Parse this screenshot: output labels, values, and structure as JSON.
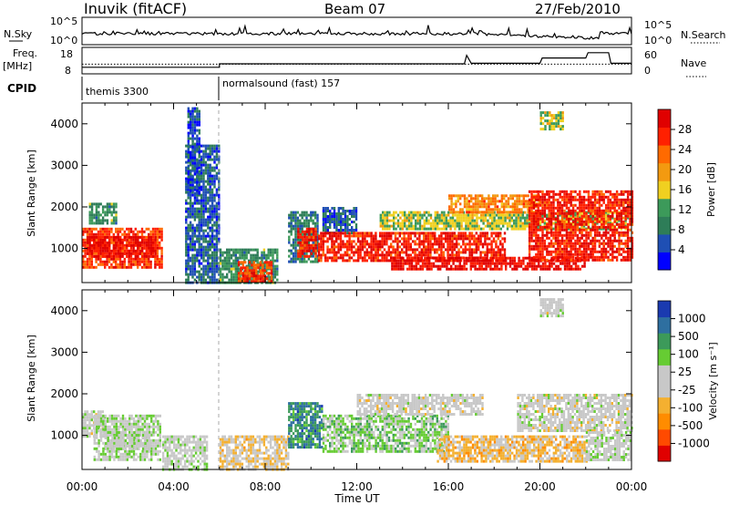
{
  "header": {
    "station": "Inuvik (fitACF)",
    "beam": "Beam 07",
    "date": "27/Feb/2010"
  },
  "nsky_panel": {
    "left_label": "N.Sky",
    "right_label": "N.Search",
    "left_ticks": [
      "10^5",
      "10^0"
    ],
    "right_ticks": [
      "10^5",
      "10^0"
    ]
  },
  "freq_panel": {
    "left_label_line1": "Freq.",
    "left_label_line2": "[MHz]",
    "left_ticks": [
      "18",
      "8"
    ],
    "right_ticks": [
      "60",
      "0"
    ],
    "right_label": "Nave"
  },
  "cpid_panel": {
    "label": "CPID",
    "segments": [
      {
        "label": "themis 3300",
        "start_hour": 0,
        "end_hour": 6
      },
      {
        "label": "normalsound (fast) 157",
        "start_hour": 6,
        "end_hour": 24
      }
    ]
  },
  "time_axis": {
    "title": "Time UT",
    "ticks": [
      "00:00",
      "04:00",
      "08:00",
      "12:00",
      "16:00",
      "20:00",
      "00:00"
    ],
    "range_hours": [
      0,
      24
    ]
  },
  "chart_data": [
    {
      "type": "heatmap",
      "title": "",
      "ylabel": "Slant Range [km]",
      "xlabel": "",
      "yticks": [
        "4000",
        "3000",
        "2000",
        "1000"
      ],
      "ylim": [
        180,
        4500
      ],
      "colorbar": {
        "label": "Power [dB]",
        "ticks": [
          "28",
          "24",
          "20",
          "16",
          "12",
          "8",
          "4"
        ],
        "range": [
          0,
          30
        ],
        "colors": [
          "#0000ff",
          "#1f4fb4",
          "#2e7d58",
          "#3c9a5a",
          "#f0d020",
          "#f39a10",
          "#ff6a00",
          "#ff2000",
          "#e00000"
        ]
      },
      "regions": [
        {
          "t0": 0.0,
          "t1": 3.5,
          "r0": 550,
          "r1": 1500,
          "value": 24
        },
        {
          "t0": 0.2,
          "t1": 3.2,
          "r0": 800,
          "r1": 1300,
          "value": 28
        },
        {
          "t0": 0.3,
          "t1": 1.5,
          "r0": 1600,
          "r1": 2100,
          "value": 10
        },
        {
          "t0": 4.5,
          "t1": 6.0,
          "r0": 200,
          "r1": 3500,
          "value": 6
        },
        {
          "t0": 4.6,
          "t1": 5.1,
          "r0": 2300,
          "r1": 4400,
          "value": 5
        },
        {
          "t0": 6.0,
          "t1": 8.5,
          "r0": 200,
          "r1": 1000,
          "value": 10
        },
        {
          "t0": 6.8,
          "t1": 8.3,
          "r0": 230,
          "r1": 700,
          "value": 24
        },
        {
          "t0": 9.0,
          "t1": 10.3,
          "r0": 700,
          "r1": 1900,
          "value": 8
        },
        {
          "t0": 9.4,
          "t1": 10.2,
          "r0": 800,
          "r1": 1500,
          "value": 26
        },
        {
          "t0": 10.5,
          "t1": 12.0,
          "r0": 1400,
          "r1": 2000,
          "value": 6
        },
        {
          "t0": 10.3,
          "t1": 18.5,
          "r0": 700,
          "r1": 1400,
          "value": 26
        },
        {
          "t0": 13.0,
          "t1": 23.8,
          "r0": 1500,
          "r1": 1900,
          "value": 14
        },
        {
          "t0": 13.5,
          "t1": 22.0,
          "r0": 500,
          "r1": 800,
          "value": 28
        },
        {
          "t0": 16.0,
          "t1": 20.0,
          "r0": 1900,
          "r1": 2300,
          "value": 20
        },
        {
          "t0": 19.5,
          "t1": 24.0,
          "r0": 700,
          "r1": 2400,
          "value": 26
        },
        {
          "t0": 20.0,
          "t1": 21.0,
          "r0": 3900,
          "r1": 4300,
          "value": 14
        }
      ]
    },
    {
      "type": "heatmap",
      "title": "",
      "ylabel": "Slant Range [km]",
      "xlabel": "Time UT",
      "yticks": [
        "4000",
        "3000",
        "2000",
        "1000"
      ],
      "ylim": [
        180,
        4500
      ],
      "colorbar": {
        "label": "Velocity [m s⁻¹]",
        "ticks": [
          "1000",
          "500",
          "100",
          "25",
          "-25",
          "-100",
          "-500",
          "-1000"
        ],
        "range": [
          -1200,
          1200
        ],
        "colors": [
          "#e00000",
          "#ff4a00",
          "#ff8c00",
          "#f4b030",
          "#c8c8c8",
          "#c8c8c8",
          "#66cc33",
          "#3c9a5a",
          "#2e6fa0",
          "#1a3ab0"
        ]
      },
      "regions": [
        {
          "t0": 0.0,
          "t1": 1.0,
          "r0": 950,
          "r1": 1600,
          "value": 0
        },
        {
          "t0": 0.5,
          "t1": 3.4,
          "r0": 400,
          "r1": 1500,
          "value": 150
        },
        {
          "t0": 1.0,
          "t1": 3.0,
          "r0": 700,
          "r1": 1100,
          "value": 80
        },
        {
          "t0": 3.5,
          "t1": 5.5,
          "r0": 200,
          "r1": 1000,
          "value": 60
        },
        {
          "t0": 6.0,
          "t1": 9.0,
          "r0": 200,
          "r1": 1000,
          "value": -200
        },
        {
          "t0": 9.0,
          "t1": 10.5,
          "r0": 700,
          "r1": 1800,
          "value": 700
        },
        {
          "t0": 10.5,
          "t1": 16.0,
          "r0": 600,
          "r1": 1500,
          "value": 300
        },
        {
          "t0": 12.0,
          "t1": 17.5,
          "r0": 1500,
          "r1": 2000,
          "value": 0
        },
        {
          "t0": 15.5,
          "t1": 22.0,
          "r0": 400,
          "r1": 1000,
          "value": -300
        },
        {
          "t0": 19.0,
          "t1": 24.0,
          "r0": 1100,
          "r1": 2000,
          "value": 0
        },
        {
          "t0": 22.0,
          "t1": 24.0,
          "r0": 400,
          "r1": 1100,
          "value": 80
        },
        {
          "t0": 20.0,
          "t1": 21.0,
          "r0": 3900,
          "r1": 4300,
          "value": 0
        }
      ]
    }
  ],
  "nsky_series_hint": "log-scale line",
  "freq_series": {
    "freq_line": [
      [
        0,
        10.5
      ],
      [
        6,
        10.5
      ],
      [
        6,
        11.8
      ],
      [
        16.7,
        11.8
      ],
      [
        16.8,
        15
      ],
      [
        17,
        12
      ],
      [
        20,
        12
      ],
      [
        20.1,
        14
      ],
      [
        22,
        14
      ],
      [
        22.1,
        16
      ],
      [
        23,
        16
      ],
      [
        23.1,
        12
      ],
      [
        24,
        12
      ]
    ],
    "nave_dotted": [
      [
        0,
        22
      ],
      [
        24,
        22
      ]
    ]
  }
}
